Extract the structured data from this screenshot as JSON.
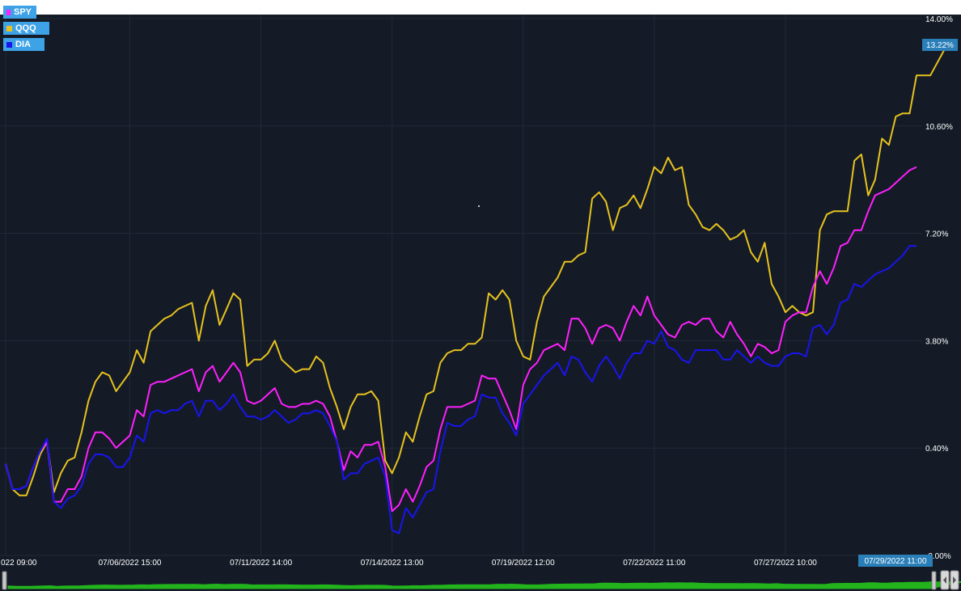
{
  "chart_data": {
    "type": "line",
    "title": "",
    "xlabel": "",
    "ylabel": "",
    "ylim": [
      -3.0,
      14.0
    ],
    "y_ticks": [
      "14.00%",
      "10.60%",
      "7.20%",
      "3.80%",
      "0.40%",
      "-3.00%"
    ],
    "y_tick_values": [
      14.0,
      10.6,
      7.2,
      3.8,
      0.4,
      -3.0
    ],
    "x_ticks": [
      "022 09:00",
      "07/06/2022 15:00",
      "07/11/2022 14:00",
      "07/14/2022 13:00",
      "07/19/2022 12:00",
      "07/22/2022 11:00",
      "07/27/2022 10:00"
    ],
    "x_tick_index": [
      0,
      18,
      37,
      56,
      75,
      94,
      113
    ],
    "x_range": [
      0,
      132
    ],
    "current_value_label": "13.22%",
    "current_time_label": "07/29/2022 11:00",
    "legend_position": "top-left",
    "grid": true,
    "series": [
      {
        "name": "SPY",
        "color": "#ff1fff",
        "values": [
          -0.1,
          -0.9,
          -0.9,
          -0.8,
          -0.2,
          0.3,
          0.6,
          -1.3,
          -1.3,
          -0.9,
          -0.9,
          -0.5,
          0.4,
          0.9,
          0.9,
          0.7,
          0.4,
          0.6,
          0.8,
          1.6,
          1.4,
          2.4,
          2.5,
          2.5,
          2.6,
          2.7,
          2.8,
          2.9,
          2.2,
          2.8,
          3.0,
          2.5,
          2.8,
          3.1,
          2.8,
          1.9,
          1.8,
          1.9,
          2.1,
          2.3,
          1.8,
          1.7,
          1.7,
          1.8,
          1.8,
          1.9,
          1.8,
          1.4,
          0.6,
          -0.3,
          0.3,
          0.1,
          0.5,
          0.5,
          0.6,
          -0.2,
          -1.6,
          -1.4,
          -0.9,
          -1.3,
          -0.8,
          -0.2,
          0.0,
          1.0,
          1.7,
          1.7,
          1.7,
          1.8,
          1.9,
          2.7,
          2.6,
          2.6,
          2.1,
          1.6,
          1.0,
          2.4,
          2.9,
          3.1,
          3.5,
          3.6,
          3.7,
          3.5,
          4.5,
          4.5,
          4.2,
          3.7,
          4.2,
          4.3,
          4.2,
          3.8,
          4.4,
          4.9,
          4.6,
          5.2,
          4.6,
          4.3,
          4.0,
          3.9,
          4.3,
          4.4,
          4.3,
          4.5,
          4.5,
          4.1,
          3.9,
          4.4,
          4.0,
          3.7,
          3.3,
          3.7,
          3.6,
          3.4,
          3.5,
          4.4,
          4.6,
          4.7,
          4.7,
          5.5,
          6.0,
          5.6,
          6.1,
          6.8,
          6.9,
          7.3,
          7.3,
          7.9,
          8.4,
          8.5,
          8.6,
          8.8,
          9.0,
          9.2,
          9.3
        ]
      },
      {
        "name": "QQQ",
        "color": "#e7c21f",
        "values": [
          -0.1,
          -0.9,
          -1.1,
          -1.1,
          -0.5,
          0.2,
          0.6,
          -1.0,
          -0.4,
          0.0,
          0.1,
          0.9,
          1.9,
          2.5,
          2.8,
          2.7,
          2.2,
          2.5,
          2.8,
          3.5,
          3.1,
          4.1,
          4.3,
          4.5,
          4.6,
          4.8,
          4.9,
          5.0,
          3.8,
          4.9,
          5.4,
          4.3,
          4.8,
          5.3,
          5.1,
          3.0,
          3.2,
          3.2,
          3.4,
          3.8,
          3.2,
          3.0,
          2.8,
          2.9,
          2.9,
          3.3,
          3.1,
          2.3,
          1.7,
          1.0,
          1.7,
          2.1,
          2.1,
          2.2,
          1.9,
          0.0,
          -0.4,
          0.1,
          0.9,
          0.6,
          1.4,
          2.1,
          2.2,
          3.1,
          3.4,
          3.5,
          3.5,
          3.7,
          3.7,
          3.9,
          5.3,
          5.1,
          5.4,
          5.1,
          3.8,
          3.3,
          3.2,
          4.4,
          5.2,
          5.5,
          5.8,
          6.3,
          6.3,
          6.5,
          6.6,
          8.3,
          8.5,
          8.2,
          7.3,
          8.0,
          8.1,
          8.4,
          8.0,
          8.6,
          9.3,
          9.1,
          9.6,
          9.2,
          9.3,
          8.1,
          7.8,
          7.4,
          7.3,
          7.5,
          7.3,
          7.0,
          7.1,
          7.3,
          6.6,
          6.3,
          6.9,
          5.6,
          5.2,
          4.7,
          4.9,
          4.7,
          4.6,
          4.7,
          7.3,
          7.8,
          7.9,
          7.9,
          7.9,
          9.5,
          9.7,
          8.4,
          8.9,
          10.2,
          10.0,
          10.9,
          11.0,
          11.0,
          12.2,
          12.2,
          12.2,
          12.6,
          13.0,
          13.2
        ]
      },
      {
        "name": "DIA",
        "color": "#1a14ee",
        "values": [
          -0.1,
          -0.9,
          -0.9,
          -0.8,
          -0.2,
          0.3,
          0.7,
          -1.3,
          -1.5,
          -1.2,
          -1.1,
          -0.8,
          -0.1,
          0.2,
          0.2,
          0.1,
          -0.2,
          -0.2,
          0.1,
          0.8,
          0.6,
          1.5,
          1.6,
          1.5,
          1.6,
          1.6,
          1.8,
          1.9,
          1.4,
          1.9,
          1.9,
          1.6,
          1.8,
          2.1,
          1.7,
          1.4,
          1.4,
          1.3,
          1.4,
          1.6,
          1.4,
          1.2,
          1.3,
          1.5,
          1.5,
          1.6,
          1.5,
          1.1,
          0.6,
          -0.6,
          -0.4,
          -0.4,
          -0.1,
          0.0,
          0.1,
          -0.5,
          -2.2,
          -2.3,
          -1.5,
          -1.8,
          -1.4,
          -1.0,
          -0.9,
          0.3,
          1.2,
          1.1,
          1.1,
          1.3,
          1.4,
          2.1,
          2.0,
          2.0,
          1.5,
          1.2,
          0.8,
          1.8,
          2.1,
          2.4,
          2.7,
          2.9,
          3.1,
          2.7,
          3.3,
          3.2,
          2.8,
          2.5,
          3.0,
          3.3,
          3.0,
          2.6,
          3.1,
          3.4,
          3.4,
          3.8,
          3.7,
          4.1,
          3.6,
          3.5,
          3.2,
          3.1,
          3.5,
          3.5,
          3.5,
          3.5,
          3.2,
          3.2,
          3.5,
          3.3,
          3.1,
          3.3,
          3.1,
          3.0,
          3.0,
          3.3,
          3.4,
          3.4,
          3.3,
          4.2,
          4.3,
          4.0,
          4.3,
          5.0,
          5.1,
          5.6,
          5.5,
          5.7,
          5.9,
          6.0,
          6.1,
          6.3,
          6.5,
          6.8,
          6.8
        ]
      }
    ]
  },
  "navigator": {
    "color": "#22b31d"
  }
}
